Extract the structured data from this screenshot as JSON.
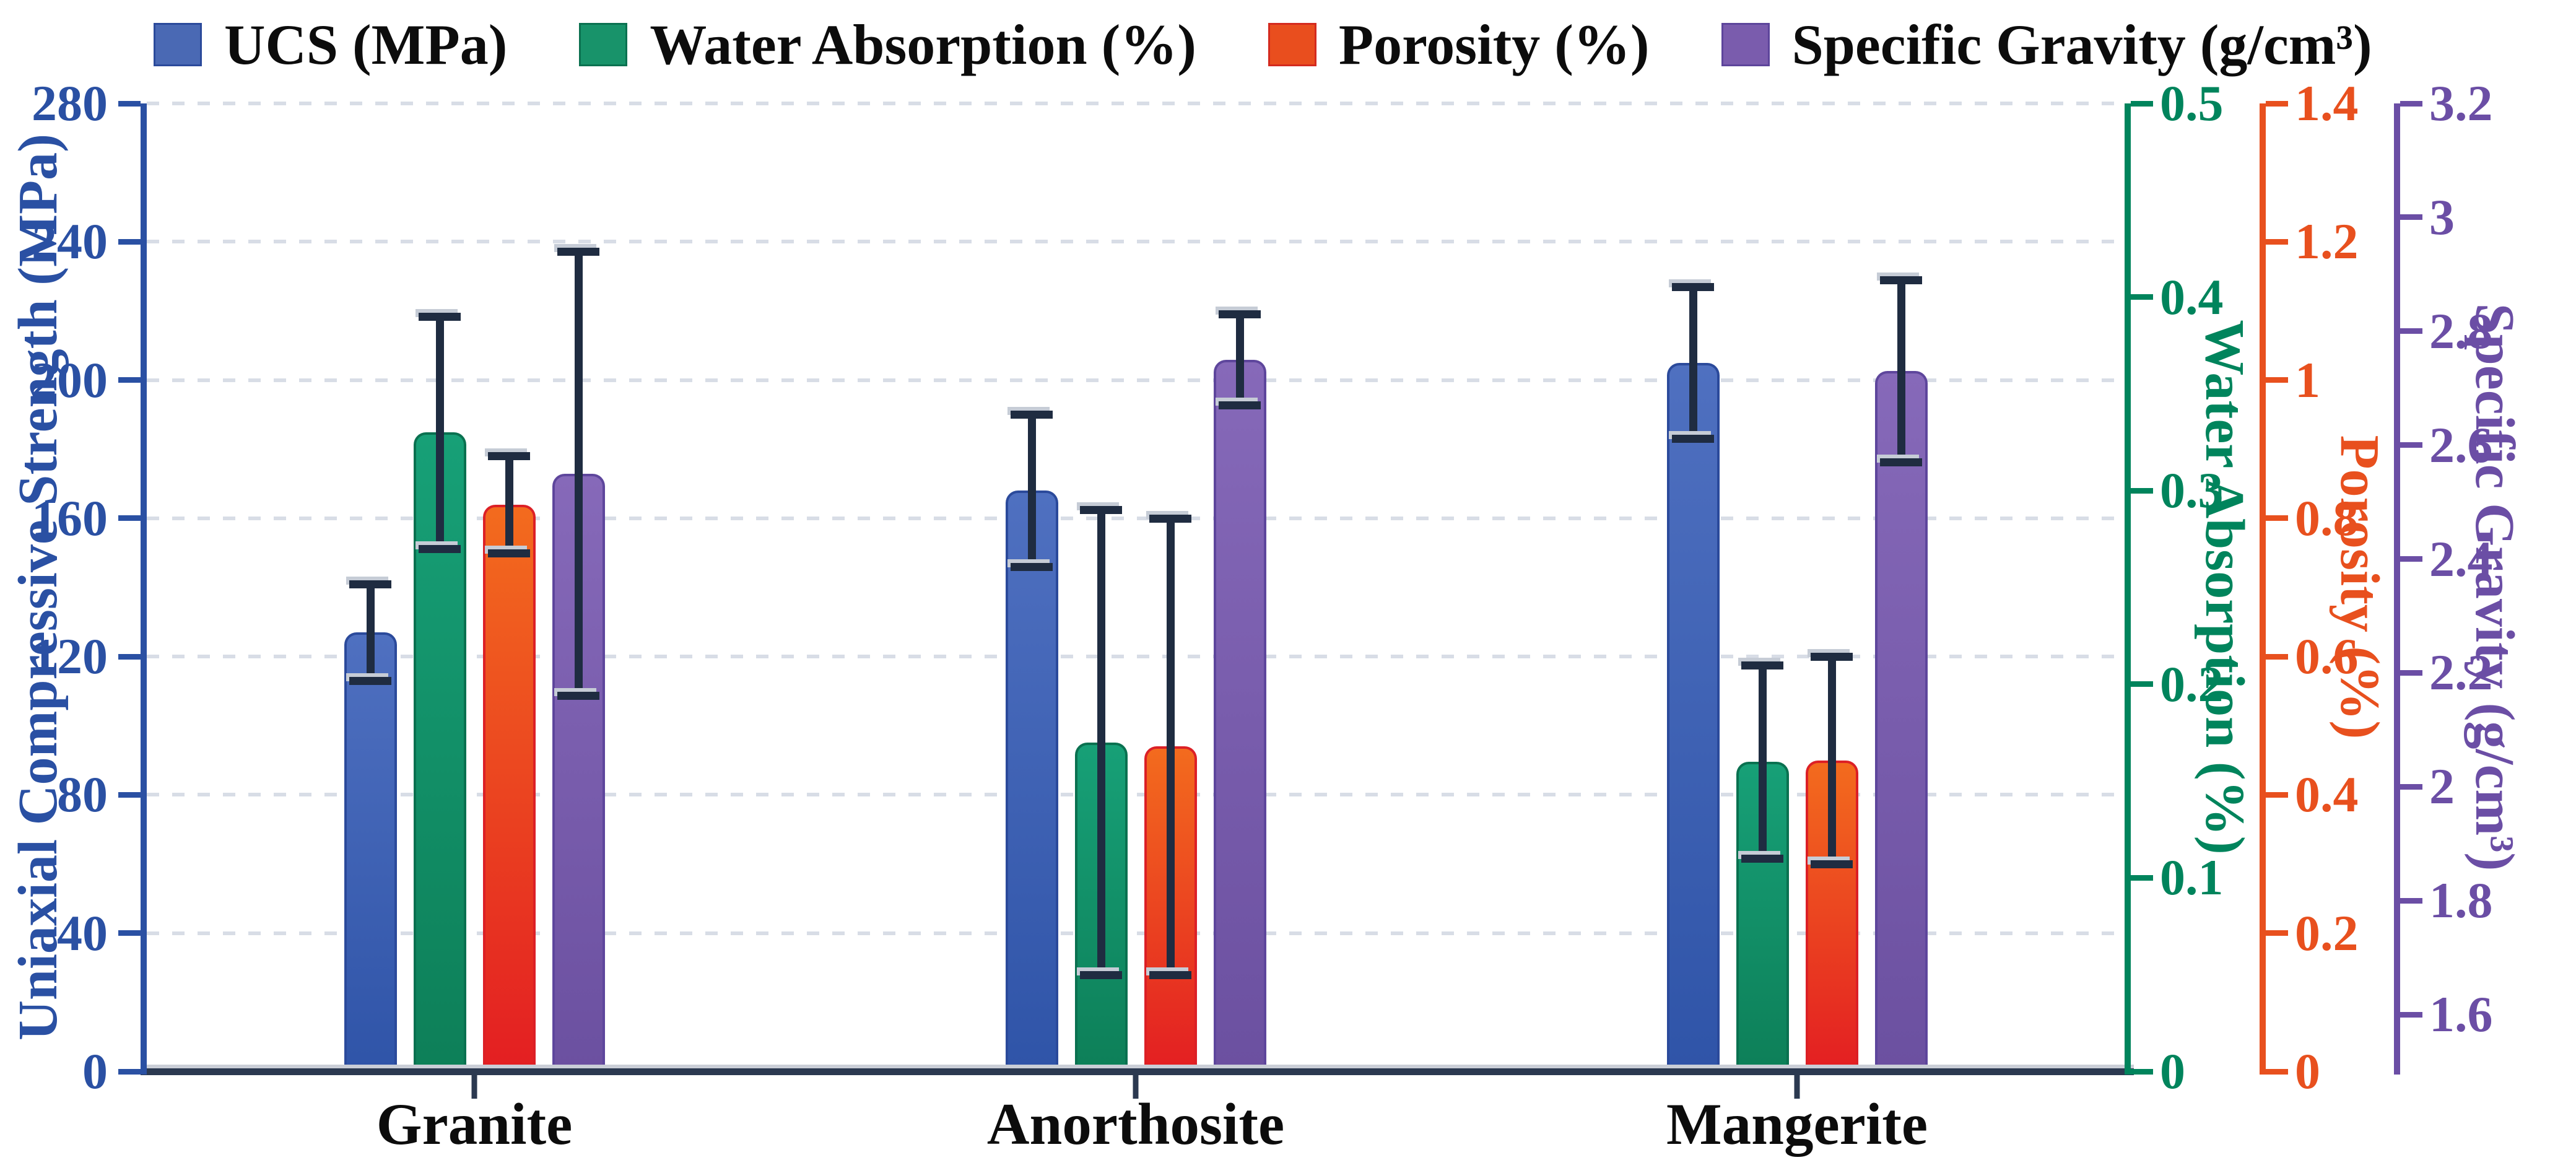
{
  "legend": {
    "items": [
      {
        "label": "UCS (MPa)",
        "swatch_fill": "#4a69b4",
        "swatch_border": "#2b4a9b"
      },
      {
        "label": "Water Absorption (%)",
        "swatch_fill": "#18936a",
        "swatch_border": "#0b7150"
      },
      {
        "label": "Porosity (%)",
        "swatch_fill": "#e94e1e",
        "swatch_border": "#d42a1e"
      },
      {
        "label": "Specific Gravity (g/cm³)",
        "swatch_fill": "#7a5cad",
        "swatch_border": "#5d459b"
      }
    ]
  },
  "chart_data": {
    "type": "bar",
    "subtype": "grouped-bars-multi-axis-with-error-bars",
    "categories": [
      "Granite",
      "Anorthosite",
      "Mangerite"
    ],
    "series": [
      {
        "name": "UCS (MPa)",
        "axis": "ucs",
        "values": [
          127,
          168,
          205
        ],
        "errors": [
          14,
          22,
          22
        ],
        "fill_top": "#4f70c0",
        "fill_bottom": "#2f54a8",
        "border": "#2b4a9b"
      },
      {
        "name": "Water Absorption (%)",
        "axis": "wa",
        "values": [
          0.33,
          0.17,
          0.16
        ],
        "errors": [
          0.06,
          0.12,
          0.05
        ],
        "fill_top": "#17a077",
        "fill_bottom": "#0d7f58",
        "border": "#0a7150"
      },
      {
        "name": "Porosity (%)",
        "axis": "por",
        "values": [
          0.82,
          0.47,
          0.45
        ],
        "errors": [
          0.07,
          0.33,
          0.15
        ],
        "fill_top": "#f36b1e",
        "fill_bottom": "#e31e22",
        "border": "#dc2026"
      },
      {
        "name": "Specific Gravity (g/cm³)",
        "axis": "sg",
        "values": [
          2.55,
          2.75,
          2.73
        ],
        "errors": [
          0.39,
          0.08,
          0.16
        ],
        "fill_top": "#8669b9",
        "fill_bottom": "#6b50a0",
        "border": "#5e469c"
      }
    ],
    "axes": {
      "ucs": {
        "title": "Uniaxial Compressive Strength (MPa)",
        "min": 0,
        "max": 280,
        "color": "#2a50a3",
        "side": "left",
        "tick_labels": [
          "0",
          "40",
          "80",
          "120",
          "160",
          "200",
          "240",
          "280"
        ]
      },
      "wa": {
        "title": "Water Absorption (%)",
        "min": 0,
        "max": 0.5,
        "color": "#00845c",
        "side": "right",
        "tick_labels": [
          "0",
          "0.1",
          "0.2",
          "0.3",
          "0.4",
          "0.5"
        ]
      },
      "por": {
        "title": "Porosity (%)",
        "min": 0,
        "max": 1.4,
        "color": "#e8501e",
        "side": "right",
        "tick_labels": [
          "0",
          "0.2",
          "0.4",
          "0.6",
          "0.8",
          "1",
          "1.2",
          "1.4"
        ]
      },
      "sg": {
        "title": "Specific Gravity (g/cm³)",
        "min": 1.5,
        "max": 3.2,
        "color": "#6b4ea5",
        "side": "right",
        "tick_labels": [
          "1.6",
          "1.8",
          "2",
          "2.2",
          "2.4",
          "2.6",
          "2.8",
          "3",
          "3.2"
        ]
      }
    },
    "grid": {
      "shown": true,
      "at_every_ucs": 40,
      "color": "#d8dde6",
      "style": "dashed"
    },
    "error_bar_color": "#1f2c41",
    "background": "#ffffff"
  }
}
